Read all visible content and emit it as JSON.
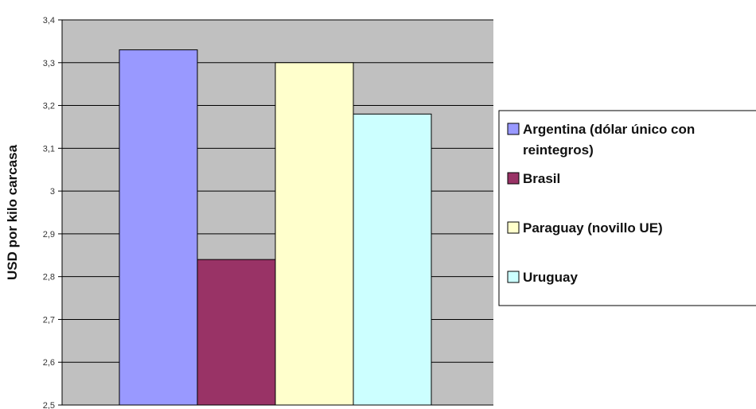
{
  "chart_data": {
    "type": "bar",
    "title": "",
    "xlabel": "",
    "ylabel": "USD por kilo carcasa",
    "ylim": [
      2.5,
      3.4
    ],
    "yticks": [
      "2,5",
      "2,6",
      "2,7",
      "2,8",
      "2,9",
      "3",
      "3,1",
      "3,2",
      "3,3",
      "3,4"
    ],
    "ytick_values": [
      2.5,
      2.6,
      2.7,
      2.8,
      2.9,
      3.0,
      3.1,
      3.2,
      3.3,
      3.4
    ],
    "grid": true,
    "plot_background": "#c0c0c0",
    "legend_position": "right",
    "series": [
      {
        "name": "Argentina (dólar único con reintegros)",
        "legend_lines": [
          "Argentina (dólar único con",
          "reintegros)"
        ],
        "value": 3.33,
        "color": "#9999ff"
      },
      {
        "name": "Brasil",
        "legend_lines": [
          "Brasil"
        ],
        "value": 2.84,
        "color": "#993366"
      },
      {
        "name": "Paraguay (novillo UE)",
        "legend_lines": [
          "Paraguay (novillo UE)"
        ],
        "value": 3.3,
        "color": "#ffffcc"
      },
      {
        "name": "Uruguay",
        "legend_lines": [
          "Uruguay"
        ],
        "value": 3.18,
        "color": "#ccffff"
      }
    ]
  }
}
